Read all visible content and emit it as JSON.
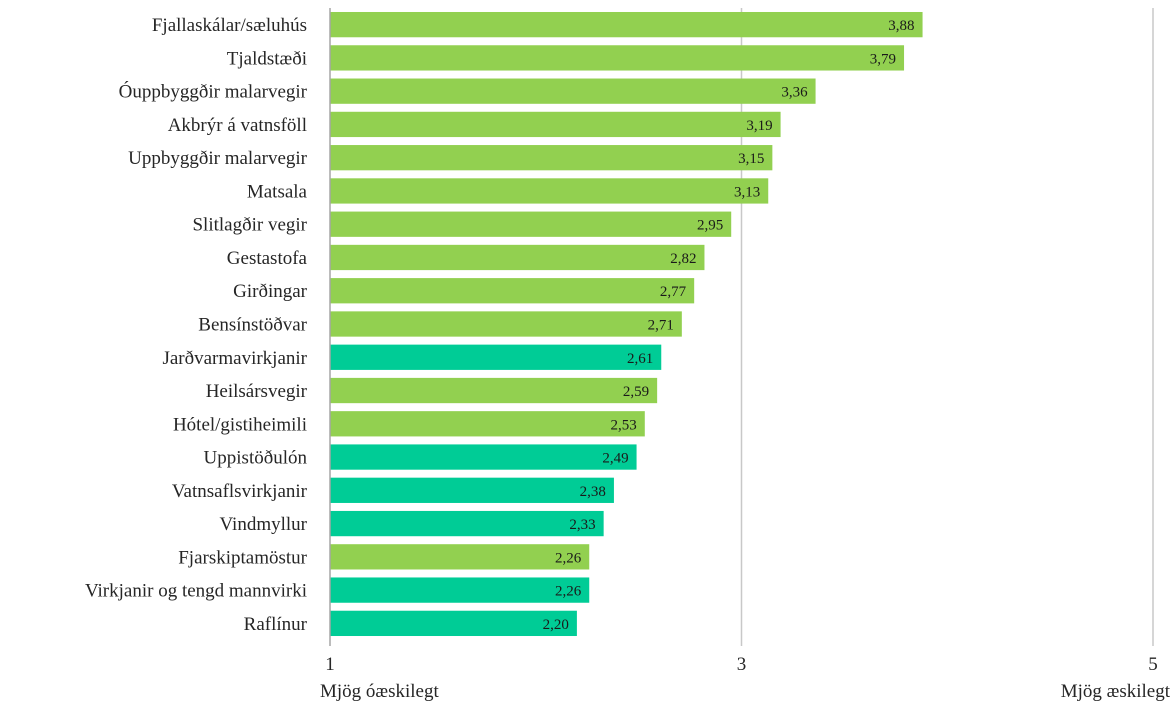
{
  "chart_data": {
    "type": "bar",
    "orientation": "horizontal",
    "title": "",
    "xlabel": "",
    "ylabel": "",
    "xlim": [
      1,
      5
    ],
    "x_ticks": [
      1,
      3,
      5
    ],
    "tick_labels": [
      "1",
      "3",
      "5"
    ],
    "left_end_label": "Mjög óæskilegt",
    "right_end_label": "Mjög æskilegt",
    "grid": "vertical gridlines at ticks",
    "legend": "none",
    "colors": {
      "green": "#92d050",
      "teal": "#00cc96"
    },
    "bars": [
      {
        "category": "Fjallaskálar/sæluhús",
        "value": 3.88,
        "value_label": "3,88",
        "color": "green"
      },
      {
        "category": "Tjaldstæði",
        "value": 3.79,
        "value_label": "3,79",
        "color": "green"
      },
      {
        "category": "Óuppbyggðir malarvegir",
        "value": 3.36,
        "value_label": "3,36",
        "color": "green"
      },
      {
        "category": "Akbrýr á vatnsföll",
        "value": 3.19,
        "value_label": "3,19",
        "color": "green"
      },
      {
        "category": "Uppbyggðir malarvegir",
        "value": 3.15,
        "value_label": "3,15",
        "color": "green"
      },
      {
        "category": "Matsala",
        "value": 3.13,
        "value_label": "3,13",
        "color": "green"
      },
      {
        "category": "Slitlagðir vegir",
        "value": 2.95,
        "value_label": "2,95",
        "color": "green"
      },
      {
        "category": "Gestastofa",
        "value": 2.82,
        "value_label": "2,82",
        "color": "green"
      },
      {
        "category": "Girðingar",
        "value": 2.77,
        "value_label": "2,77",
        "color": "green"
      },
      {
        "category": "Bensínstöðvar",
        "value": 2.71,
        "value_label": "2,71",
        "color": "green"
      },
      {
        "category": "Jarðvarmavirkjanir",
        "value": 2.61,
        "value_label": "2,61",
        "color": "teal"
      },
      {
        "category": "Heilsársvegir",
        "value": 2.59,
        "value_label": "2,59",
        "color": "green"
      },
      {
        "category": "Hótel/gistiheimili",
        "value": 2.53,
        "value_label": "2,53",
        "color": "green"
      },
      {
        "category": "Uppistöðulón",
        "value": 2.49,
        "value_label": "2,49",
        "color": "teal"
      },
      {
        "category": "Vatnsaflsvirkjanir",
        "value": 2.38,
        "value_label": "2,38",
        "color": "teal"
      },
      {
        "category": "Vindmyllur",
        "value": 2.33,
        "value_label": "2,33",
        "color": "teal"
      },
      {
        "category": "Fjarskiptamöstur",
        "value": 2.26,
        "value_label": "2,26",
        "color": "green"
      },
      {
        "category": "Virkjanir og tengd mannvirki",
        "value": 2.26,
        "value_label": "2,26",
        "color": "teal"
      },
      {
        "category": "Raflínur",
        "value": 2.2,
        "value_label": "2,20",
        "color": "teal"
      }
    ]
  }
}
